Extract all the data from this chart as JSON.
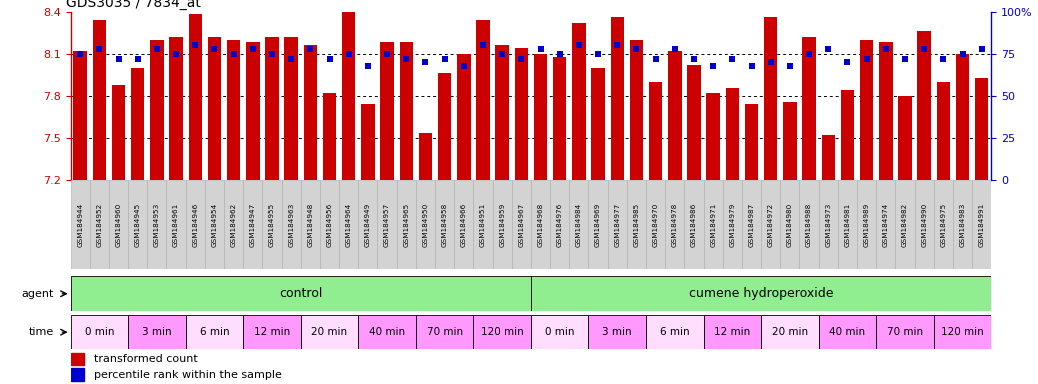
{
  "title": "GDS3035 / 7834_at",
  "ylim_left": [
    7.2,
    8.4
  ],
  "ylim_right": [
    0,
    100
  ],
  "yticks_left": [
    7.2,
    7.5,
    7.8,
    8.1,
    8.4
  ],
  "yticks_right": [
    0,
    25,
    50,
    75,
    100
  ],
  "ytick_labels_right": [
    "0",
    "25",
    "50",
    "75",
    "100%"
  ],
  "bar_color": "#cc0000",
  "dot_color": "#0000cc",
  "bg_color": "#ffffff",
  "gsm_labels": [
    "GSM184944",
    "GSM184952",
    "GSM184960",
    "GSM184945",
    "GSM184953",
    "GSM184961",
    "GSM184946",
    "GSM184954",
    "GSM184962",
    "GSM184947",
    "GSM184955",
    "GSM184963",
    "GSM184948",
    "GSM184956",
    "GSM184964",
    "GSM184949",
    "GSM184957",
    "GSM184965",
    "GSM184950",
    "GSM184958",
    "GSM184966",
    "GSM184951",
    "GSM184959",
    "GSM184967",
    "GSM184968",
    "GSM184976",
    "GSM184984",
    "GSM184969",
    "GSM184977",
    "GSM184985",
    "GSM184970",
    "GSM184978",
    "GSM184986",
    "GSM184971",
    "GSM184979",
    "GSM184987",
    "GSM184972",
    "GSM184980",
    "GSM184988",
    "GSM184973",
    "GSM184981",
    "GSM184989",
    "GSM184974",
    "GSM184982",
    "GSM184990",
    "GSM184975",
    "GSM184983",
    "GSM184991"
  ],
  "bar_values": [
    8.12,
    8.34,
    7.88,
    8.0,
    8.2,
    8.22,
    8.38,
    8.22,
    8.2,
    8.18,
    8.22,
    8.22,
    8.16,
    7.82,
    8.5,
    7.74,
    8.18,
    8.18,
    7.54,
    7.96,
    8.1,
    8.34,
    8.16,
    8.14,
    8.1,
    8.08,
    8.32,
    8.0,
    8.36,
    8.2,
    7.9,
    8.12,
    8.02,
    7.82,
    7.86,
    7.74,
    8.36,
    7.76,
    8.22,
    7.52,
    7.84,
    8.2,
    8.18,
    7.8,
    8.26,
    7.9,
    8.1,
    7.93
  ],
  "dot_values": [
    75,
    78,
    72,
    72,
    78,
    75,
    80,
    78,
    75,
    78,
    75,
    72,
    78,
    72,
    75,
    68,
    75,
    72,
    70,
    72,
    68,
    80,
    75,
    72,
    78,
    75,
    80,
    75,
    80,
    78,
    72,
    78,
    72,
    68,
    72,
    68,
    70,
    68,
    75,
    78,
    70,
    72,
    78,
    72,
    78,
    72,
    75,
    78
  ],
  "control_groups": [
    {
      "label": "0 min",
      "start": 0,
      "end": 3
    },
    {
      "label": "3 min",
      "start": 3,
      "end": 6
    },
    {
      "label": "6 min",
      "start": 6,
      "end": 9
    },
    {
      "label": "12 min",
      "start": 9,
      "end": 12
    },
    {
      "label": "20 min",
      "start": 12,
      "end": 15
    },
    {
      "label": "40 min",
      "start": 15,
      "end": 18
    },
    {
      "label": "70 min",
      "start": 18,
      "end": 21
    },
    {
      "label": "120 min",
      "start": 21,
      "end": 24
    }
  ],
  "treatment_groups": [
    {
      "label": "0 min",
      "start": 24,
      "end": 27
    },
    {
      "label": "3 min",
      "start": 27,
      "end": 30
    },
    {
      "label": "6 min",
      "start": 30,
      "end": 33
    },
    {
      "label": "12 min",
      "start": 33,
      "end": 36
    },
    {
      "label": "20 min",
      "start": 36,
      "end": 39
    },
    {
      "label": "40 min",
      "start": 39,
      "end": 42
    },
    {
      "label": "70 min",
      "start": 42,
      "end": 45
    },
    {
      "label": "120 min",
      "start": 45,
      "end": 48
    }
  ],
  "agent_label": "agent",
  "time_label": "time",
  "control_label": "control",
  "treatment_label": "cumene hydroperoxide",
  "legend_bar_label": "transformed count",
  "legend_dot_label": "percentile rank within the sample",
  "agent_color": "#90ee90",
  "time_colors": [
    "#ffddff",
    "#ff99ff",
    "#ffddff",
    "#ff99ff",
    "#ffddff",
    "#ff99ff",
    "#ff99ff",
    "#ff99ff"
  ],
  "label_bg_color": "#d3d3d3",
  "label_edge_color": "#aaaaaa",
  "dotted_line_color": "#555555",
  "left_axis_color": "#cc0000",
  "right_axis_color": "#0000cc"
}
